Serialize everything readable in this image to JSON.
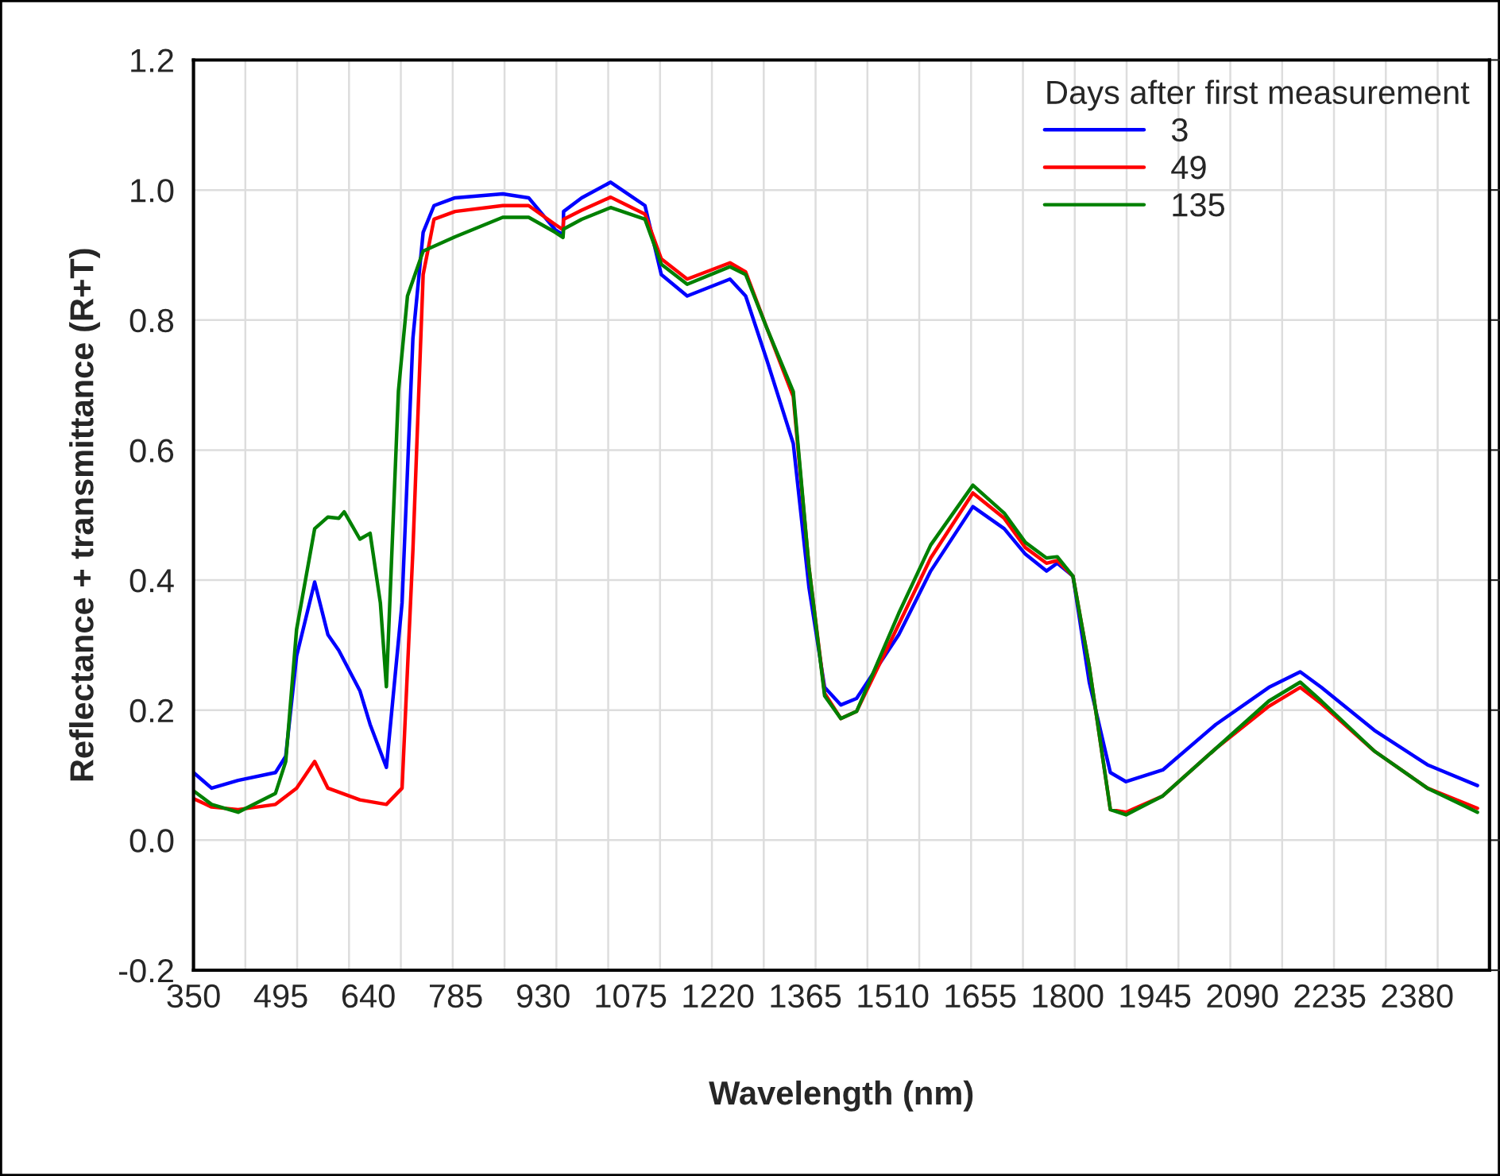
{
  "chart_data": {
    "type": "line",
    "xlabel": "Wavelength (nm)",
    "ylabel": "Reflectance + transmittance (R+T)",
    "legend_title": "Days after first measurement",
    "legend": "top right",
    "grid": true,
    "line_style": "solid",
    "marker": "none",
    "xlim": [
      350,
      2500
    ],
    "ylim": [
      -0.2,
      1.2
    ],
    "xticks": [
      350,
      495,
      640,
      785,
      930,
      1075,
      1220,
      1365,
      1510,
      1655,
      1800,
      1945,
      2090,
      2235,
      2380,
      {
        "value": 436,
        "label": null
      },
      {
        "value": 522,
        "label": null
      },
      {
        "value": 608,
        "label": null
      },
      {
        "value": 694,
        "label": null
      },
      {
        "value": 780,
        "label": null
      },
      {
        "value": 866,
        "label": null
      },
      {
        "value": 952,
        "label": null
      },
      {
        "value": 1038,
        "label": null
      },
      {
        "value": 1124,
        "label": null
      },
      {
        "value": 1210,
        "label": null
      },
      {
        "value": 1296,
        "label": null
      },
      {
        "value": 1382,
        "label": null
      },
      {
        "value": 1468,
        "label": null
      },
      {
        "value": 1554,
        "label": null
      },
      {
        "value": 1640,
        "label": null
      },
      {
        "value": 1726,
        "label": null
      },
      {
        "value": 1812,
        "label": null
      },
      {
        "value": 1898,
        "label": null
      },
      {
        "value": 1984,
        "label": null
      },
      {
        "value": 2070,
        "label": null
      },
      {
        "value": 2156,
        "label": null
      },
      {
        "value": 2242,
        "label": null
      },
      {
        "value": 2328,
        "label": null
      },
      {
        "value": 2414,
        "label": null
      }
    ],
    "yticks": [
      {
        "value": -0.2,
        "label": "-0.2"
      },
      {
        "value": 0,
        "label": "0.0"
      },
      {
        "value": 0.2,
        "label": "0.2"
      },
      {
        "value": 0.4,
        "label": "0.4"
      },
      {
        "value": 0.6,
        "label": "0.6"
      },
      {
        "value": 0.8,
        "label": "0.8"
      },
      {
        "value": 1.0,
        "label": "1.0"
      },
      {
        "value": 1.2,
        "label": "1.2"
      }
    ],
    "series": [
      {
        "name": "3",
        "color": "#0000ff",
        "x": [
          350,
          380,
          424,
          486,
          503,
          521,
          551,
          573,
          591,
          626,
          643,
          670,
          696,
          714,
          731,
          749,
          784,
          863,
          906,
          950,
          963,
          964,
          994,
          1042,
          1099,
          1126,
          1169,
          1240,
          1266,
          1301,
          1345,
          1371,
          1397,
          1424,
          1450,
          1520,
          1573,
          1643,
          1695,
          1730,
          1765,
          1783,
          1809,
          1836,
          1871,
          1897,
          1958,
          2046,
          2134,
          2186,
          2221,
          2309,
          2397,
          2480
        ],
        "values": [
          0.104,
          0.08,
          0.092,
          0.104,
          0.129,
          0.283,
          0.397,
          0.316,
          0.292,
          0.23,
          0.178,
          0.112,
          0.365,
          0.772,
          0.935,
          0.976,
          0.988,
          0.994,
          0.988,
          0.939,
          0.931,
          0.967,
          0.988,
          1.012,
          0.976,
          0.87,
          0.837,
          0.863,
          0.837,
          0.739,
          0.61,
          0.389,
          0.235,
          0.208,
          0.218,
          0.316,
          0.414,
          0.513,
          0.479,
          0.44,
          0.414,
          0.426,
          0.406,
          0.243,
          0.104,
          0.09,
          0.108,
          0.178,
          0.235,
          0.259,
          0.235,
          0.169,
          0.116,
          0.084
        ]
      },
      {
        "name": "49",
        "color": "#ff0000",
        "x": [
          350,
          380,
          424,
          486,
          521,
          551,
          573,
          626,
          670,
          696,
          714,
          731,
          749,
          784,
          863,
          906,
          950,
          963,
          964,
          994,
          1042,
          1099,
          1126,
          1169,
          1240,
          1266,
          1301,
          1345,
          1371,
          1397,
          1424,
          1450,
          1520,
          1573,
          1643,
          1695,
          1730,
          1765,
          1783,
          1809,
          1836,
          1871,
          1897,
          1958,
          2046,
          2134,
          2186,
          2221,
          2309,
          2397,
          2480
        ],
        "values": [
          0.064,
          0.051,
          0.047,
          0.055,
          0.08,
          0.121,
          0.08,
          0.062,
          0.055,
          0.08,
          0.446,
          0.87,
          0.955,
          0.967,
          0.976,
          0.976,
          0.947,
          0.939,
          0.955,
          0.969,
          0.989,
          0.963,
          0.894,
          0.863,
          0.888,
          0.874,
          0.788,
          0.682,
          0.42,
          0.226,
          0.187,
          0.198,
          0.332,
          0.434,
          0.534,
          0.495,
          0.45,
          0.426,
          0.43,
          0.406,
          0.267,
          0.047,
          0.043,
          0.068,
          0.141,
          0.206,
          0.235,
          0.21,
          0.137,
          0.08,
          0.049
        ]
      },
      {
        "name": "135",
        "color": "#008000",
        "x": [
          350,
          380,
          424,
          486,
          503,
          521,
          551,
          573,
          591,
          600,
          626,
          643,
          660,
          670,
          690,
          705,
          731,
          784,
          863,
          906,
          950,
          963,
          964,
          994,
          1042,
          1099,
          1126,
          1169,
          1240,
          1266,
          1301,
          1345,
          1371,
          1397,
          1424,
          1450,
          1520,
          1573,
          1643,
          1695,
          1730,
          1765,
          1783,
          1809,
          1836,
          1871,
          1897,
          1958,
          2046,
          2134,
          2186,
          2221,
          2309,
          2397,
          2480
        ],
        "values": [
          0.076,
          0.055,
          0.043,
          0.072,
          0.121,
          0.324,
          0.479,
          0.497,
          0.495,
          0.505,
          0.463,
          0.472,
          0.365,
          0.236,
          0.691,
          0.837,
          0.906,
          0.928,
          0.958,
          0.958,
          0.935,
          0.927,
          0.94,
          0.955,
          0.973,
          0.955,
          0.886,
          0.855,
          0.882,
          0.87,
          0.788,
          0.69,
          0.42,
          0.222,
          0.187,
          0.198,
          0.349,
          0.454,
          0.546,
          0.503,
          0.458,
          0.434,
          0.436,
          0.406,
          0.267,
          0.047,
          0.039,
          0.068,
          0.141,
          0.214,
          0.243,
          0.214,
          0.137,
          0.08,
          0.043
        ]
      }
    ]
  }
}
